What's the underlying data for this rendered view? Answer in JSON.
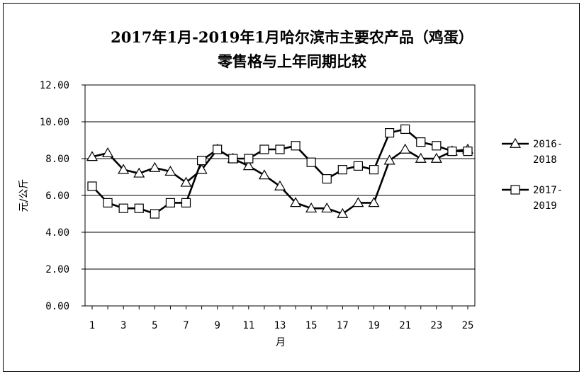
{
  "chart_data": {
    "type": "line",
    "title": "2017年1月-2019年1月哈尔滨市主要农产品（鸡蛋）",
    "subtitle": "零售格与上年同期比较",
    "xlabel": "月",
    "ylabel": "元/公斤",
    "ylim": [
      0,
      12
    ],
    "xlim": [
      1,
      25
    ],
    "y_ticks": [
      "0.00",
      "2.00",
      "4.00",
      "6.00",
      "8.00",
      "10.00",
      "12.00"
    ],
    "x_ticks": [
      "1",
      "3",
      "5",
      "7",
      "9",
      "11",
      "13",
      "15",
      "17",
      "19",
      "21",
      "23",
      "25"
    ],
    "x": [
      1,
      2,
      3,
      4,
      5,
      6,
      7,
      8,
      9,
      10,
      11,
      12,
      13,
      14,
      15,
      16,
      17,
      18,
      19,
      20,
      21,
      22,
      23,
      24,
      25
    ],
    "grid": "horizontal",
    "legend_position": "right",
    "series": [
      {
        "name": "2016-2018",
        "legend_lines": [
          "2016-",
          "2018"
        ],
        "marker": "triangle",
        "values": [
          8.1,
          8.3,
          7.4,
          7.2,
          7.5,
          7.3,
          6.7,
          7.4,
          8.5,
          8.0,
          7.6,
          7.1,
          6.5,
          5.6,
          5.3,
          5.3,
          5.0,
          5.6,
          5.6,
          7.9,
          8.5,
          8.0,
          8.0,
          8.4,
          8.5
        ]
      },
      {
        "name": "2017-2019",
        "legend_lines": [
          "2017-",
          "2019"
        ],
        "marker": "square",
        "values": [
          6.5,
          5.6,
          5.3,
          5.3,
          5.0,
          5.6,
          5.6,
          7.9,
          8.5,
          8.0,
          8.0,
          8.5,
          8.5,
          8.7,
          7.8,
          6.9,
          7.4,
          7.6,
          7.4,
          9.4,
          9.6,
          8.9,
          8.7,
          8.4,
          8.4
        ]
      }
    ],
    "colors": {
      "line": "#000000",
      "marker_fill": "#ffffff",
      "grid": "#000000"
    }
  }
}
